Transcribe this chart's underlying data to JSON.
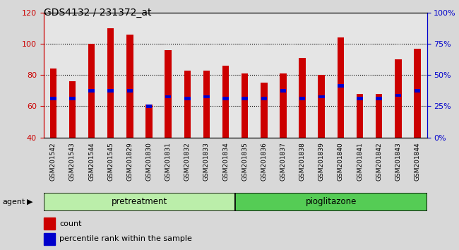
{
  "title": "GDS4132 / 231372_at",
  "samples": [
    "GSM201542",
    "GSM201543",
    "GSM201544",
    "GSM201545",
    "GSM201829",
    "GSM201830",
    "GSM201831",
    "GSM201832",
    "GSM201833",
    "GSM201834",
    "GSM201835",
    "GSM201836",
    "GSM201837",
    "GSM201838",
    "GSM201839",
    "GSM201840",
    "GSM201841",
    "GSM201842",
    "GSM201843",
    "GSM201844"
  ],
  "count_values": [
    84,
    76,
    100,
    110,
    106,
    61,
    96,
    83,
    83,
    86,
    81,
    75,
    81,
    91,
    80,
    104,
    68,
    68,
    90,
    97
  ],
  "percentile_values": [
    65,
    65,
    70,
    70,
    70,
    60,
    66,
    65,
    66,
    65,
    65,
    65,
    70,
    65,
    66,
    73,
    65,
    65,
    67,
    70
  ],
  "bar_color": "#cc0000",
  "percentile_color": "#0000cc",
  "ylim_left": [
    40,
    120
  ],
  "ylim_right": [
    0,
    100
  ],
  "yticks_left": [
    40,
    60,
    80,
    100,
    120
  ],
  "yticks_right": [
    0,
    25,
    50,
    75,
    100
  ],
  "ytick_labels_right": [
    "0%",
    "25%",
    "50%",
    "75%",
    "100%"
  ],
  "agent_label": "agent",
  "pretreatment_label": "pretreatment",
  "pioglitazone_label": "pioglitazone",
  "legend_count_label": "count",
  "legend_percentile_label": "percentile rank within the sample",
  "pretreatment_color": "#bbeeaa",
  "pioglitazone_color": "#55cc55",
  "fig_bg_color": "#d8d8d8",
  "plot_bg_color": "#ffffff",
  "tick_bg_color": "#cccccc"
}
